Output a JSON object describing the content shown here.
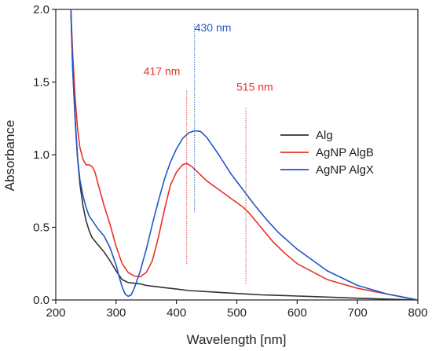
{
  "chart_data": {
    "type": "line",
    "xlabel": "Wavelength [nm]",
    "ylabel": "Absorbance",
    "xlim": [
      200,
      800
    ],
    "ylim": [
      0,
      2.0
    ],
    "xticks": [
      200,
      300,
      400,
      500,
      600,
      700,
      800
    ],
    "yticks": [
      0.0,
      0.5,
      1.0,
      1.5,
      2.0
    ],
    "ytick_labels": [
      "0.0",
      "0.5",
      "1.0",
      "1.5",
      "2.0"
    ],
    "grid": false,
    "legend": {
      "placement": "right"
    },
    "series": [
      {
        "name": "Alg",
        "color": "#333333",
        "x": [
          225,
          228,
          232,
          236,
          240,
          245,
          250,
          255,
          260,
          270,
          280,
          290,
          300,
          310,
          320,
          330,
          340,
          350,
          360,
          380,
          400,
          420,
          440,
          460,
          480,
          500,
          520,
          540,
          560,
          580,
          600,
          650,
          700,
          750,
          800
        ],
        "y": [
          2.0,
          1.6,
          1.25,
          0.98,
          0.8,
          0.65,
          0.55,
          0.48,
          0.43,
          0.38,
          0.33,
          0.27,
          0.2,
          0.14,
          0.12,
          0.115,
          0.11,
          0.1,
          0.095,
          0.085,
          0.075,
          0.065,
          0.06,
          0.055,
          0.05,
          0.045,
          0.04,
          0.035,
          0.033,
          0.03,
          0.027,
          0.02,
          0.012,
          0.006,
          0.0
        ]
      },
      {
        "name": "AgNP AlgB",
        "color": "#e8312a",
        "x": [
          225,
          228,
          232,
          236,
          240,
          245,
          250,
          255,
          260,
          265,
          270,
          280,
          290,
          300,
          310,
          320,
          330,
          340,
          350,
          360,
          370,
          380,
          390,
          400,
          410,
          417,
          425,
          435,
          450,
          470,
          490,
          510,
          520,
          540,
          560,
          580,
          600,
          650,
          700,
          750,
          800
        ],
        "y": [
          2.0,
          1.7,
          1.4,
          1.18,
          1.05,
          0.97,
          0.93,
          0.93,
          0.92,
          0.88,
          0.8,
          0.65,
          0.52,
          0.37,
          0.25,
          0.19,
          0.165,
          0.16,
          0.19,
          0.27,
          0.43,
          0.62,
          0.79,
          0.88,
          0.93,
          0.94,
          0.92,
          0.88,
          0.82,
          0.76,
          0.7,
          0.64,
          0.6,
          0.5,
          0.4,
          0.32,
          0.25,
          0.14,
          0.08,
          0.04,
          0.0
        ]
      },
      {
        "name": "AgNP AlgX",
        "color": "#1f57c8",
        "x": [
          225,
          228,
          232,
          236,
          240,
          245,
          250,
          255,
          260,
          270,
          280,
          290,
          300,
          305,
          310,
          315,
          320,
          325,
          330,
          340,
          350,
          360,
          370,
          380,
          390,
          400,
          410,
          420,
          430,
          440,
          450,
          470,
          490,
          510,
          530,
          550,
          570,
          600,
          650,
          700,
          750,
          800
        ],
        "y": [
          2.0,
          1.6,
          1.25,
          0.98,
          0.83,
          0.72,
          0.64,
          0.58,
          0.55,
          0.49,
          0.44,
          0.36,
          0.24,
          0.16,
          0.09,
          0.04,
          0.025,
          0.035,
          0.08,
          0.2,
          0.35,
          0.52,
          0.68,
          0.83,
          0.95,
          1.04,
          1.11,
          1.15,
          1.165,
          1.16,
          1.12,
          1.0,
          0.87,
          0.76,
          0.65,
          0.55,
          0.46,
          0.35,
          0.2,
          0.1,
          0.04,
          0.0
        ]
      }
    ],
    "annotations": [
      {
        "label": "417 nm",
        "x": 417,
        "color": "#e8312a",
        "line_ymin": 0.24,
        "line_ymax": 1.44,
        "text_y": 1.55
      },
      {
        "label": "430 nm",
        "x": 430,
        "color": "#1f57c8",
        "line_ymin": 0.6,
        "line_ymax": 1.9,
        "text_y": 1.85
      },
      {
        "label": "515 nm",
        "x": 515,
        "color": "#e8312a",
        "line_ymin": 0.11,
        "line_ymax": 1.32,
        "text_y": 1.44
      }
    ]
  }
}
